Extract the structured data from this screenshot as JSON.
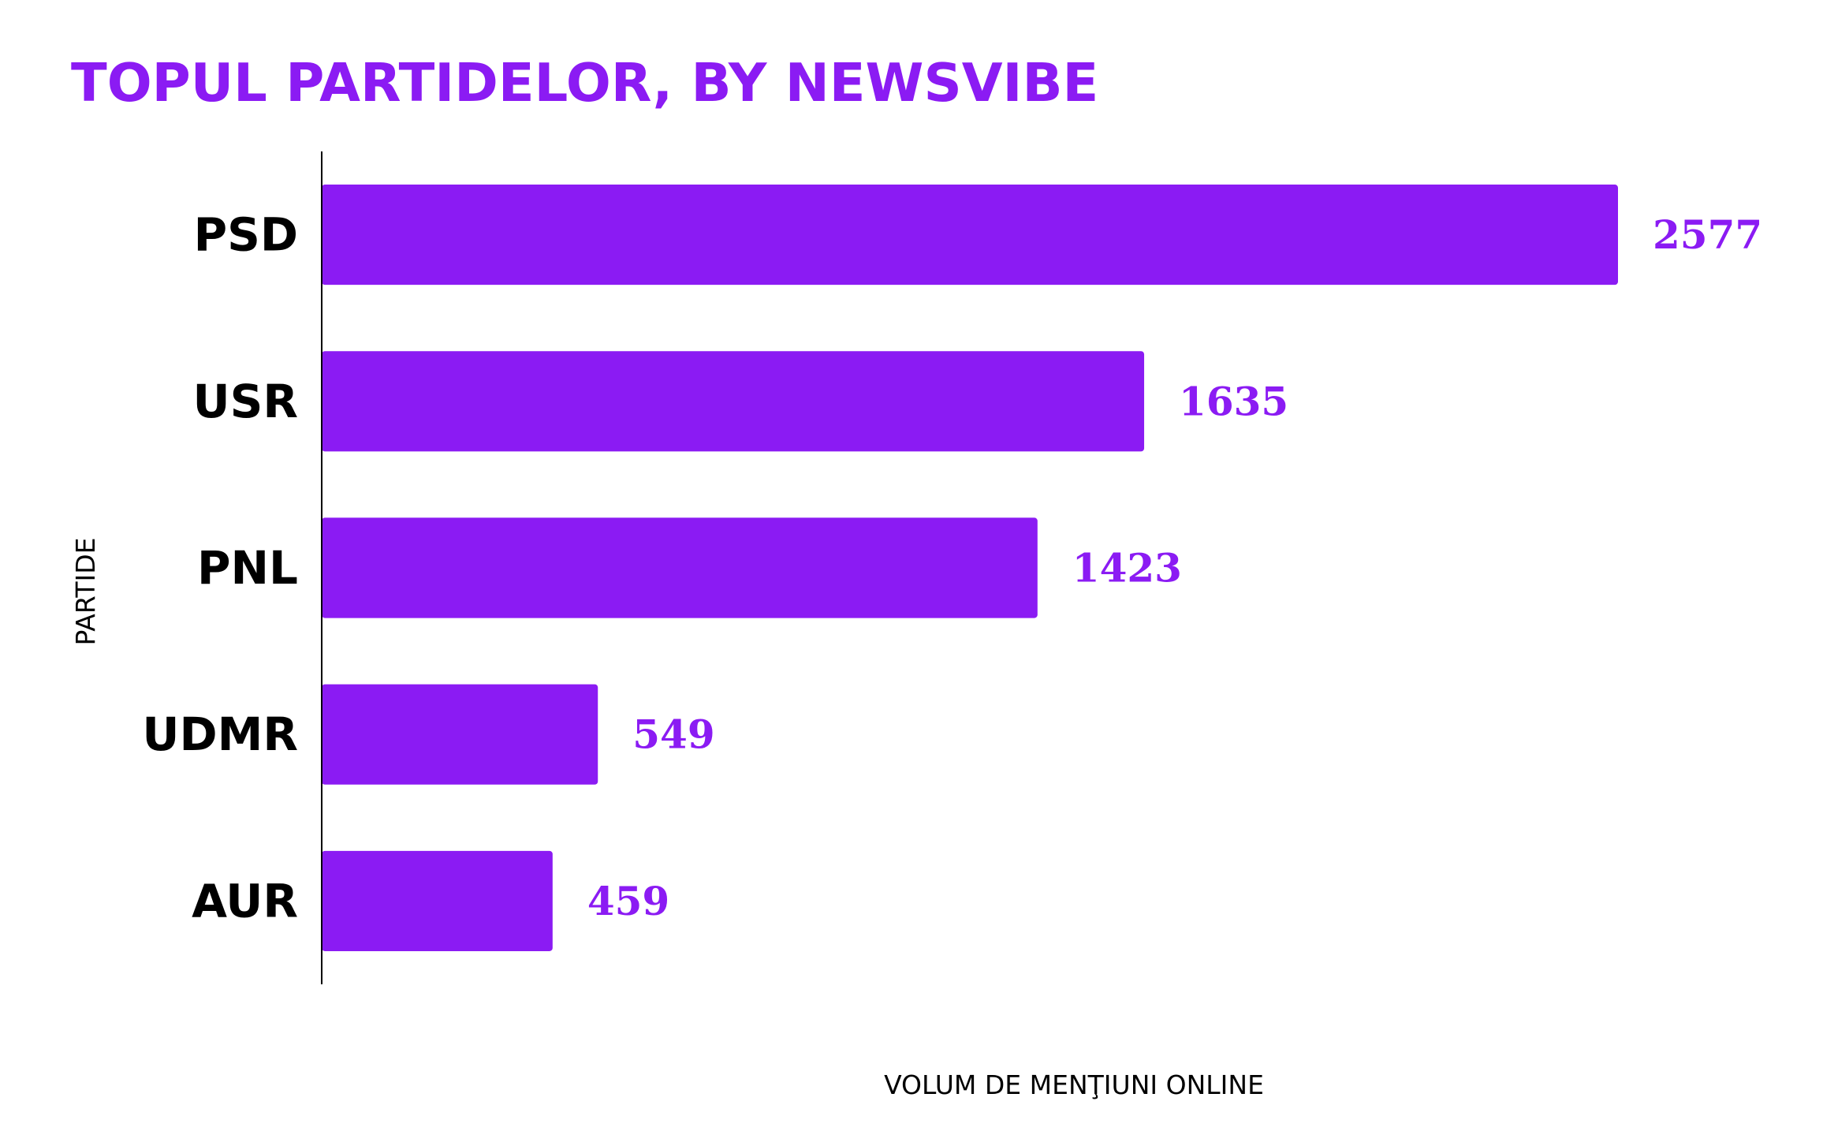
{
  "chart_data": {
    "type": "bar",
    "orientation": "horizontal",
    "title": "TOPUL PARTIDELOR, BY NEWSVIBE",
    "xlabel": "VOLUM DE MENŢIUNI ONLINE",
    "ylabel": "PARTIDE",
    "categories": [
      "PSD",
      "USR",
      "PNL",
      "UDMR",
      "AUR"
    ],
    "values": [
      2577,
      1635,
      1423,
      549,
      459
    ],
    "data_labels": [
      "2577",
      "1635",
      "1423",
      "549",
      "459"
    ],
    "xlim": [
      0,
      2577
    ],
    "grid": false,
    "legend": "none",
    "colors": {
      "bar": "#8b1bf3",
      "title": "#8b1bf3",
      "value_label": "#8b1bf3",
      "axis": "#000000"
    }
  }
}
